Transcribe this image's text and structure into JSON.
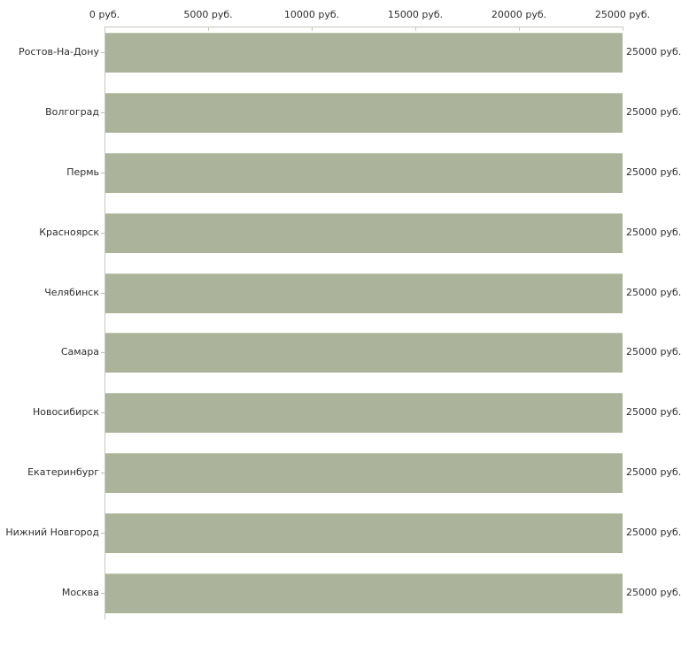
{
  "chart_data": {
    "type": "bar",
    "orientation": "horizontal",
    "title": "",
    "categories": [
      "Ростов-На-Дону",
      "Волгоград",
      "Пермь",
      "Красноярск",
      "Челябинск",
      "Самара",
      "Новосибирск",
      "Екатеринбург",
      "Нижний Новгород",
      "Москва"
    ],
    "values": [
      25000,
      25000,
      25000,
      25000,
      25000,
      25000,
      25000,
      25000,
      25000,
      25000
    ],
    "value_labels": [
      "25000 руб.",
      "25000 руб.",
      "25000 руб.",
      "25000 руб.",
      "25000 руб.",
      "25000 руб.",
      "25000 руб.",
      "25000 руб.",
      "25000 руб.",
      "25000 руб."
    ],
    "x_axis": {
      "position": "top",
      "unit": "руб.",
      "tick_values": [
        0,
        5000,
        10000,
        15000,
        20000,
        25000
      ],
      "tick_labels": [
        "0 руб.",
        "5000 руб.",
        "10000 руб.",
        "15000 руб.",
        "20000 руб.",
        "25000 руб."
      ],
      "xlim": [
        0,
        25000
      ]
    },
    "grid": false,
    "legend": false,
    "colors": {
      "bar": "#abb49a",
      "bar_top_edge": "#c2c9b1",
      "axis_line": "#c7c7c0",
      "x_tick": "#c9ccb6",
      "y_tick": "#bcbcb4",
      "text": "#2e2e2e",
      "background": "#ffffff"
    }
  }
}
